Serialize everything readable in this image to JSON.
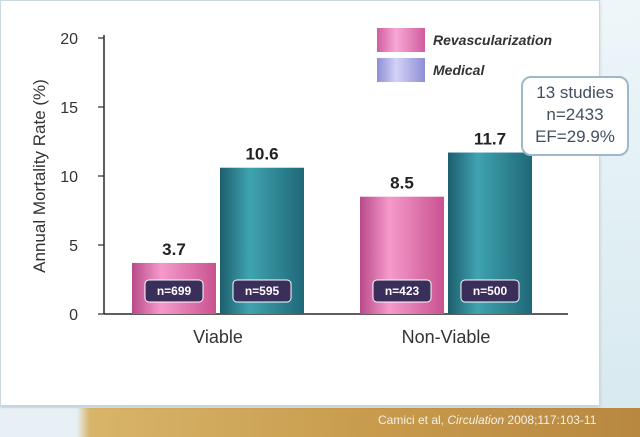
{
  "chart_data": {
    "type": "bar",
    "categories": [
      "Viable",
      "Non-Viable"
    ],
    "series": [
      {
        "name": "Revascularization",
        "values": [
          3.7,
          8.5
        ],
        "n_labels": [
          "n=699",
          "n=423"
        ],
        "color": "#e06fb0"
      },
      {
        "name": "Medical",
        "values": [
          10.6,
          11.7
        ],
        "n_labels": [
          "n=595",
          "n=500"
        ],
        "color": "#2f8d9c"
      }
    ],
    "value_labels": [
      "3.7",
      "10.6",
      "8.5",
      "11.7"
    ],
    "ylabel": "Annual Mortality Rate (%)",
    "xlabel": "",
    "ylim": [
      0,
      20
    ],
    "yticks": [
      "0",
      "5",
      "10",
      "15",
      "20"
    ],
    "grid": false,
    "legend_position": "top-right"
  },
  "callout": {
    "line1": "13 studies",
    "line2": "n=2433",
    "line3": "EF=29.9%"
  },
  "citation": {
    "authors": "Camici et al, ",
    "journal": "Circulation",
    "ref": " 2008;117:103-11"
  },
  "colors": {
    "revascularization": "#e06fb0",
    "medical": "#2f8d9c",
    "legend_medical_swatch": "#b3b3ec",
    "n_label_box": "#3a2e5a"
  }
}
